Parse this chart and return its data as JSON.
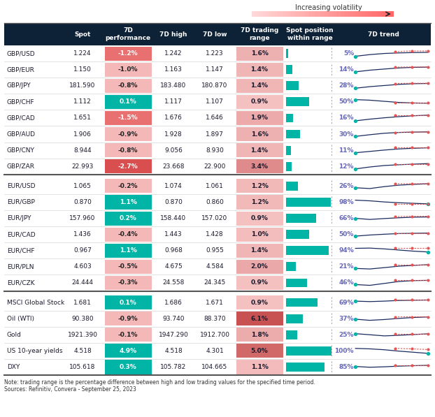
{
  "headers": [
    "",
    "Spot",
    "7D\nperformance",
    "7D high",
    "7D low",
    "7D trading\nrange",
    "Spot position\nwithin range",
    "7D trend"
  ],
  "rows": [
    [
      "GBP/USD",
      "1.224",
      "-1.2%",
      "1.242",
      "1.223",
      "1.6%",
      5,
      -1.2
    ],
    [
      "GBP/EUR",
      "1.150",
      "-1.0%",
      "1.163",
      "1.147",
      "1.4%",
      14,
      -1.0
    ],
    [
      "GBP/JPY",
      "181.590",
      "-0.8%",
      "183.480",
      "180.870",
      "1.4%",
      28,
      -0.8
    ],
    [
      "GBP/CHF",
      "1.112",
      "0.1%",
      "1.117",
      "1.107",
      "0.9%",
      50,
      0.1
    ],
    [
      "GBP/CAD",
      "1.651",
      "-1.5%",
      "1.676",
      "1.646",
      "1.9%",
      16,
      -1.5
    ],
    [
      "GBP/AUD",
      "1.906",
      "-0.9%",
      "1.928",
      "1.897",
      "1.6%",
      30,
      -0.9
    ],
    [
      "GBP/CNY",
      "8.944",
      "-0.8%",
      "9.056",
      "8.930",
      "1.4%",
      11,
      -0.8
    ],
    [
      "GBP/ZAR",
      "22.993",
      "-2.7%",
      "23.668",
      "22.900",
      "3.4%",
      12,
      -2.7
    ],
    [
      "EUR/USD",
      "1.065",
      "-0.2%",
      "1.074",
      "1.061",
      "1.2%",
      26,
      -0.2
    ],
    [
      "EUR/GBP",
      "0.870",
      "1.1%",
      "0.870",
      "0.860",
      "1.2%",
      98,
      1.1
    ],
    [
      "EUR/JPY",
      "157.960",
      "0.2%",
      "158.440",
      "157.020",
      "0.9%",
      66,
      0.2
    ],
    [
      "EUR/CAD",
      "1.436",
      "-0.4%",
      "1.443",
      "1.428",
      "1.0%",
      50,
      -0.4
    ],
    [
      "EUR/CHF",
      "0.967",
      "1.1%",
      "0.968",
      "0.955",
      "1.4%",
      94,
      1.1
    ],
    [
      "EUR/PLN",
      "4.603",
      "-0.5%",
      "4.675",
      "4.584",
      "2.0%",
      21,
      -0.5
    ],
    [
      "EUR/CZK",
      "24.444",
      "-0.3%",
      "24.558",
      "24.345",
      "0.9%",
      46,
      -0.3
    ],
    [
      "MSCI Global Stock",
      "1.681",
      "0.1%",
      "1.686",
      "1.671",
      "0.9%",
      69,
      0.1
    ],
    [
      "Oil (WTI)",
      "90.380",
      "-0.9%",
      "93.740",
      "88.370",
      "6.1%",
      37,
      -0.9
    ],
    [
      "Gold",
      "1921.390",
      "-0.1%",
      "1947.290",
      "1912.700",
      "1.8%",
      25,
      -0.1
    ],
    [
      "US 10-year yields",
      "4.518",
      "4.9%",
      "4.518",
      "4.301",
      "5.0%",
      100,
      4.9
    ],
    [
      "DXY",
      "105.618",
      "0.3%",
      "105.782",
      "104.665",
      "1.1%",
      85,
      0.3
    ]
  ],
  "section_breaks": [
    8,
    15
  ],
  "header_bg": "#0d2137",
  "teal_color": "#00b4a6",
  "note_text": "Note: trading range is the percentage difference between high and low trading values for the specified time period.\nSources: Refinitiv, Convera - September 25, 2023",
  "sparklines": [
    {
      "blue": [
        0.75,
        0.6,
        0.5,
        0.45,
        0.42,
        0.4
      ],
      "red": [
        0.35,
        0.3,
        0.28,
        0.28,
        0.27
      ],
      "teal_start": true
    },
    {
      "blue": [
        0.7,
        0.55,
        0.45,
        0.35,
        0.3,
        0.28
      ],
      "red": [
        0.28,
        0.27,
        0.27,
        0.27,
        0.27
      ],
      "teal_start": true
    },
    {
      "blue": [
        0.72,
        0.58,
        0.48,
        0.38,
        0.32,
        0.3
      ],
      "red": [
        0.3,
        0.29,
        0.28,
        0.28,
        0.28
      ],
      "teal_start": true
    },
    {
      "blue": [
        0.3,
        0.35,
        0.45,
        0.55,
        0.6,
        0.62
      ],
      "red": [
        0.58,
        0.58,
        0.58,
        0.58,
        0.58
      ],
      "teal_start": true
    },
    {
      "blue": [
        0.75,
        0.6,
        0.48,
        0.38,
        0.3,
        0.25
      ],
      "red": [
        0.28,
        0.28,
        0.28,
        0.28,
        0.28
      ],
      "teal_start": true
    },
    {
      "blue": [
        0.7,
        0.55,
        0.42,
        0.35,
        0.32,
        0.3
      ],
      "red": [
        0.35,
        0.33,
        0.32,
        0.32,
        0.32
      ],
      "teal_start": true
    },
    {
      "blue": [
        0.72,
        0.6,
        0.48,
        0.38,
        0.32,
        0.28
      ],
      "red": [
        0.27,
        0.27,
        0.27,
        0.27,
        0.27
      ],
      "teal_start": true
    },
    {
      "blue": [
        0.72,
        0.55,
        0.42,
        0.35,
        0.3,
        0.25
      ],
      "red": [
        0.28,
        0.28,
        0.28,
        0.28,
        0.28
      ],
      "teal_start": true
    },
    {
      "blue": [
        0.65,
        0.72,
        0.55,
        0.42,
        0.35,
        0.3
      ],
      "red": [
        0.3,
        0.29,
        0.29,
        0.29,
        0.29
      ],
      "teal_start": true
    },
    {
      "blue": [
        0.32,
        0.38,
        0.48,
        0.55,
        0.6,
        0.65
      ],
      "red": [
        0.65,
        0.65,
        0.65,
        0.65,
        0.65
      ],
      "teal_start": false
    },
    {
      "blue": [
        0.5,
        0.6,
        0.52,
        0.45,
        0.4,
        0.38
      ],
      "red": [
        0.35,
        0.33,
        0.32,
        0.32,
        0.32
      ],
      "teal_start": true
    },
    {
      "blue": [
        0.65,
        0.55,
        0.48,
        0.42,
        0.4,
        0.38
      ],
      "red": [
        0.38,
        0.38,
        0.38,
        0.38,
        0.38
      ],
      "teal_start": true
    },
    {
      "blue": [
        0.3,
        0.28,
        0.35,
        0.45,
        0.55,
        0.62
      ],
      "red": [
        0.28,
        0.28,
        0.28,
        0.28,
        0.28
      ],
      "teal_start": false
    },
    {
      "blue": [
        0.65,
        0.7,
        0.58,
        0.45,
        0.38,
        0.32
      ],
      "red": [
        0.32,
        0.32,
        0.32,
        0.32,
        0.32
      ],
      "teal_start": true
    },
    {
      "blue": [
        0.65,
        0.72,
        0.55,
        0.38,
        0.3,
        0.28
      ],
      "red": [
        0.28,
        0.28,
        0.28,
        0.28,
        0.28
      ],
      "teal_start": true
    },
    {
      "blue": [
        0.38,
        0.42,
        0.38,
        0.32,
        0.3,
        0.28
      ],
      "red": [
        0.28,
        0.28,
        0.28,
        0.28,
        0.28
      ],
      "teal_start": true
    },
    {
      "blue": [
        0.55,
        0.65,
        0.58,
        0.48,
        0.4,
        0.35
      ],
      "red": [
        0.35,
        0.34,
        0.34,
        0.34,
        0.34
      ],
      "teal_start": true
    },
    {
      "blue": [
        0.4,
        0.5,
        0.6,
        0.55,
        0.48,
        0.42
      ],
      "red": [
        0.42,
        0.42,
        0.42,
        0.42,
        0.42
      ],
      "teal_start": true
    },
    {
      "blue": [
        0.28,
        0.32,
        0.4,
        0.52,
        0.62,
        0.72
      ],
      "red": [
        0.28,
        0.3,
        0.32,
        0.35,
        0.38
      ],
      "teal_start": false
    },
    {
      "blue": [
        0.45,
        0.52,
        0.48,
        0.42,
        0.38,
        0.35
      ],
      "red": [
        0.35,
        0.35,
        0.35,
        0.35,
        0.35
      ],
      "teal_start": true
    }
  ]
}
